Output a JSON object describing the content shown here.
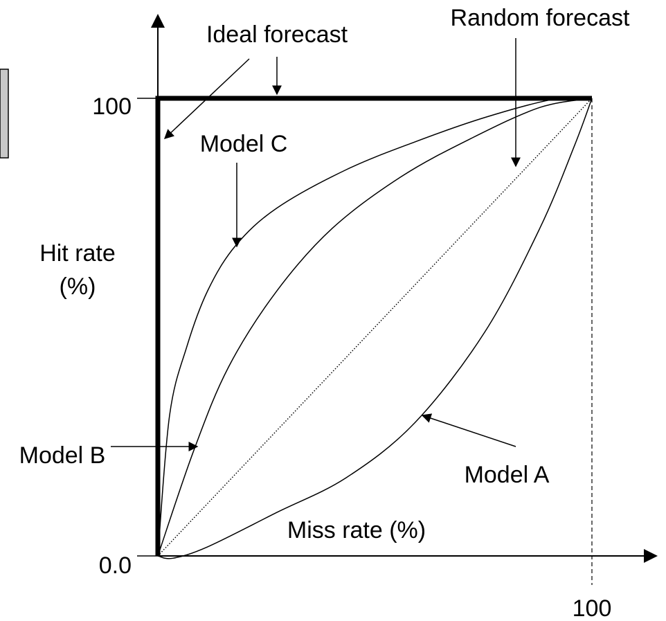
{
  "chart_data": {
    "type": "line",
    "x_label": "Miss rate (%)",
    "y_label": "Hit rate (%)",
    "xlim": [
      0,
      100
    ],
    "ylim": [
      0,
      100
    ],
    "xticks": [
      100
    ],
    "yticks": [
      {
        "value": 0,
        "label": "0.0"
      },
      100
    ],
    "series": [
      {
        "name": "Model A",
        "color": "#000000",
        "line_style": "solid",
        "line_width": "thin",
        "x": [
          0,
          3.5,
          11.5,
          27.4,
          43.4,
          59.3,
          75.3,
          88,
          96,
          100
        ],
        "values": [
          0,
          -0.5,
          2,
          9.5,
          17.1,
          29.2,
          48.9,
          71.6,
          89.7,
          100
        ]
      },
      {
        "name": "Model B",
        "color": "#000000",
        "line_style": "solid",
        "line_width": "thin",
        "x": [
          0,
          8.3,
          16.3,
          27.4,
          40.2,
          56.1,
          72.1,
          88,
          100
        ],
        "values": [
          0,
          23.1,
          41.3,
          57.9,
          71.6,
          82.9,
          91.2,
          98,
          100
        ]
      },
      {
        "name": "Model C",
        "color": "#000000",
        "line_style": "solid",
        "line_width": "thin",
        "x": [
          0,
          2.7,
          6.7,
          11.5,
          17.9,
          27.4,
          43.4,
          59.3,
          75.3,
          91.2,
          100
        ],
        "values": [
          0,
          30.7,
          45.8,
          58,
          67.8,
          76,
          84.4,
          90.5,
          95.8,
          99.8,
          100
        ]
      },
      {
        "name": "Random forecast",
        "color": "#000000",
        "line_style": "dotted",
        "line_width": "thin",
        "x": [
          0,
          100
        ],
        "values": [
          0,
          100
        ]
      },
      {
        "name": "Ideal forecast",
        "color": "#000000",
        "line_style": "solid",
        "line_width": "thick",
        "x": [
          0,
          0,
          100
        ],
        "values": [
          0,
          100,
          100
        ]
      }
    ]
  }
}
